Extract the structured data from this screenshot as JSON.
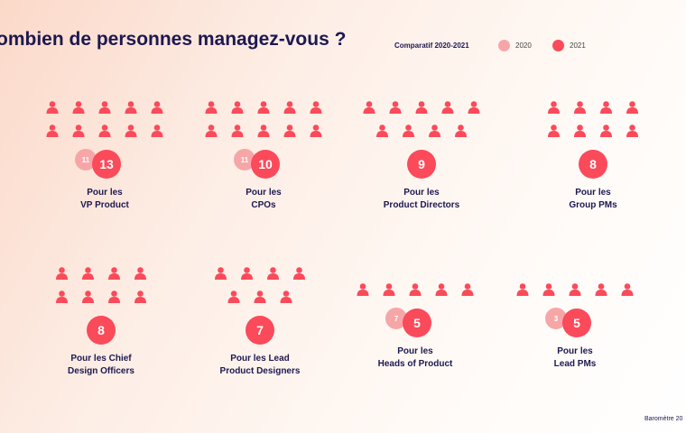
{
  "title": "ombien de personnes managez-vous ?",
  "legend": {
    "title": "Comparatif 2020-2021",
    "items": [
      {
        "label": "2020",
        "color": "#f7a6a8"
      },
      {
        "label": "2021",
        "color": "#fb4a5a"
      }
    ]
  },
  "footer": "Baromètre 20",
  "colors": {
    "figure": "#fb4a5a",
    "bubble_2021": "#fb4a5a",
    "bubble_2020": "#f7a6a8",
    "text": "#1d1850"
  },
  "icons": {
    "person": "person-icon",
    "plus": "plus-icon"
  },
  "chart_data": {
    "type": "pictogram",
    "title": "ombien de personnes managez-vous ?",
    "series": [
      {
        "name": "2020",
        "values": [
          11,
          11,
          null,
          null,
          null,
          null,
          7,
          3
        ]
      },
      {
        "name": "2021",
        "values": [
          13,
          10,
          9,
          8,
          8,
          7,
          5,
          5
        ]
      }
    ],
    "categories": [
      {
        "line1": "Pour les",
        "line2": "VP Product",
        "v2021": 13,
        "v2020": 11,
        "plus": true
      },
      {
        "line1": "Pour les",
        "line2": "CPOs",
        "v2021": 10,
        "v2020": 11,
        "plus": false
      },
      {
        "line1": "Pour les",
        "line2": "Product Directors",
        "v2021": 9,
        "v2020": null,
        "plus": false
      },
      {
        "line1": "Pour les",
        "line2": "Group PMs",
        "v2021": 8,
        "v2020": null,
        "plus": false
      },
      {
        "line1": "Pour les Chief",
        "line2": "Design Officers",
        "v2021": 8,
        "v2020": null,
        "plus": false
      },
      {
        "line1": "Pour les Lead",
        "line2": "Product Designers",
        "v2021": 7,
        "v2020": null,
        "plus": false
      },
      {
        "line1": "Pour les",
        "line2": "Heads of Product",
        "v2021": 5,
        "v2020": 7,
        "plus": false
      },
      {
        "line1": "Pour les",
        "line2": "Lead PMs",
        "v2021": 5,
        "v2020": 3,
        "plus": false
      }
    ]
  }
}
